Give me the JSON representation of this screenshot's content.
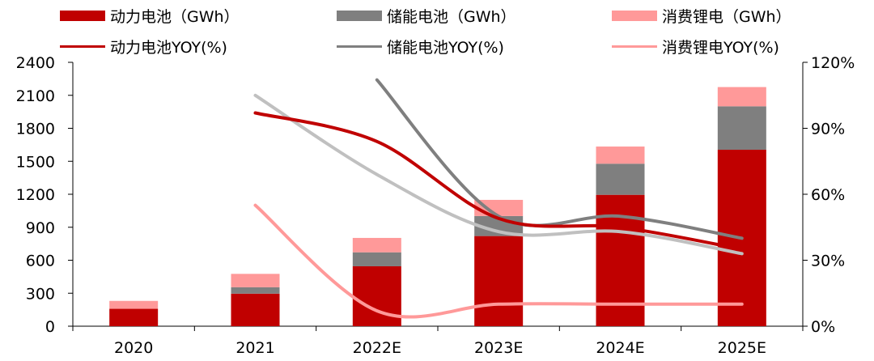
{
  "chart_data": {
    "type": "bar",
    "stacked": true,
    "categories": [
      "2020",
      "2021",
      "2022E",
      "2023E",
      "2024E",
      "2025E"
    ],
    "bar_series": [
      {
        "name": "动力电池（GWh）",
        "color": "#c00000",
        "values": [
          158,
          296,
          545,
          820,
          1195,
          1605
        ]
      },
      {
        "name": "储能电池（GWh）",
        "color": "#7f7f7f",
        "values": [
          0,
          58,
          127,
          182,
          283,
          395
        ]
      },
      {
        "name": "消费锂电（GWh）",
        "color": "#ff9999",
        "values": [
          72,
          122,
          131,
          147,
          156,
          175
        ]
      }
    ],
    "line_series": [
      {
        "name": "动力电池YOY(%)",
        "color": "#c00000",
        "axis": "right",
        "points": [
          [
            1,
            97
          ],
          [
            2,
            84
          ],
          [
            3,
            49
          ],
          [
            4,
            45
          ],
          [
            5,
            35
          ]
        ]
      },
      {
        "name": "储能电池YOY(%)",
        "color": "#7f7f7f",
        "axis": "right",
        "points": [
          [
            2,
            112
          ],
          [
            3,
            50
          ],
          [
            4,
            50
          ],
          [
            5,
            40
          ]
        ]
      },
      {
        "name": "消费锂电YOY(%)",
        "color": "#ff9999",
        "axis": "right",
        "points": [
          [
            1,
            55
          ],
          [
            2,
            7
          ],
          [
            3,
            10
          ],
          [
            4,
            10
          ],
          [
            5,
            10
          ]
        ]
      },
      {
        "name": "",
        "color": "#c0c0c0",
        "axis": "right",
        "points": [
          [
            1,
            105
          ],
          [
            2,
            69
          ],
          [
            3,
            43
          ],
          [
            4,
            43
          ],
          [
            5,
            33
          ]
        ]
      }
    ],
    "left_axis": {
      "ylim": [
        0,
        2400
      ],
      "ticks": [
        0,
        300,
        600,
        900,
        1200,
        1500,
        1800,
        2100,
        2400
      ]
    },
    "right_axis": {
      "ylim": [
        0,
        120
      ],
      "ticks": [
        "0%",
        "30%",
        "60%",
        "90%",
        "120%"
      ]
    },
    "legend": {
      "position": "top"
    }
  }
}
